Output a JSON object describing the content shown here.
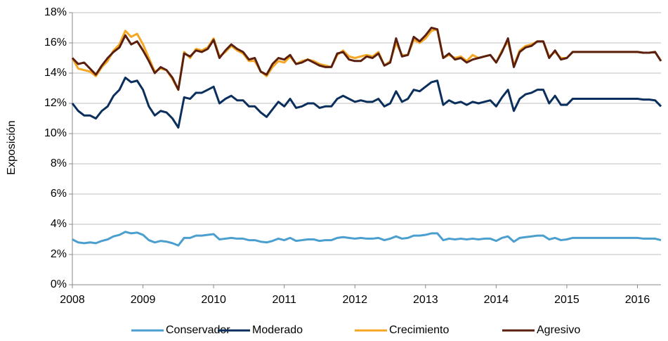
{
  "chart_data": {
    "type": "line",
    "y_label": "Exposición",
    "x": [
      2008,
      2008.083,
      2008.167,
      2008.25,
      2008.333,
      2008.417,
      2008.5,
      2008.583,
      2008.667,
      2008.75,
      2008.833,
      2008.917,
      2009,
      2009.083,
      2009.167,
      2009.25,
      2009.333,
      2009.417,
      2009.5,
      2009.583,
      2009.667,
      2009.75,
      2009.833,
      2009.917,
      2010,
      2010.083,
      2010.167,
      2010.25,
      2010.333,
      2010.417,
      2010.5,
      2010.583,
      2010.667,
      2010.75,
      2010.833,
      2010.917,
      2011,
      2011.083,
      2011.167,
      2011.25,
      2011.333,
      2011.417,
      2011.5,
      2011.583,
      2011.667,
      2011.75,
      2011.833,
      2011.917,
      2012,
      2012.083,
      2012.167,
      2012.25,
      2012.333,
      2012.417,
      2012.5,
      2012.583,
      2012.667,
      2012.75,
      2012.833,
      2012.917,
      2013,
      2013.083,
      2013.167,
      2013.25,
      2013.333,
      2013.417,
      2013.5,
      2013.583,
      2013.667,
      2013.75,
      2013.833,
      2013.917,
      2014,
      2014.083,
      2014.167,
      2014.25,
      2014.333,
      2014.417,
      2014.5,
      2014.583,
      2014.667,
      2014.75,
      2014.833,
      2014.917,
      2015,
      2015.083,
      2015.167,
      2015.25,
      2015.333,
      2015.417,
      2015.5,
      2015.583,
      2015.667,
      2015.75,
      2015.833,
      2015.917,
      2016,
      2016.083,
      2016.167,
      2016.25,
      2016.333
    ],
    "series": [
      {
        "name": "Conservador",
        "color": "#4a9fcf",
        "values": [
          3.0,
          2.8,
          2.75,
          2.8,
          2.75,
          2.9,
          3.0,
          3.2,
          3.3,
          3.5,
          3.4,
          3.45,
          3.3,
          2.95,
          2.8,
          2.9,
          2.85,
          2.75,
          2.6,
          3.1,
          3.1,
          3.25,
          3.25,
          3.3,
          3.35,
          3.0,
          3.05,
          3.1,
          3.05,
          3.05,
          2.95,
          2.95,
          2.85,
          2.8,
          2.9,
          3.05,
          2.95,
          3.1,
          2.9,
          2.95,
          3.0,
          3.0,
          2.9,
          2.95,
          2.95,
          3.1,
          3.15,
          3.1,
          3.05,
          3.1,
          3.05,
          3.05,
          3.1,
          2.95,
          3.05,
          3.2,
          3.05,
          3.1,
          3.25,
          3.25,
          3.3,
          3.4,
          3.4,
          2.95,
          3.05,
          3.0,
          3.05,
          3.0,
          3.05,
          3.0,
          3.05,
          3.05,
          2.9,
          3.1,
          3.2,
          2.85,
          3.1,
          3.15,
          3.2,
          3.25,
          3.25,
          3.0,
          3.1,
          2.95,
          3.0,
          3.1,
          3.1,
          3.1,
          3.1,
          3.1,
          3.1,
          3.1,
          3.1,
          3.1,
          3.1,
          3.1,
          3.1,
          3.05,
          3.05,
          3.05,
          2.95
        ]
      },
      {
        "name": "Moderado",
        "color": "#0a2f5c",
        "values": [
          12.0,
          11.5,
          11.2,
          11.2,
          11.0,
          11.5,
          11.8,
          12.5,
          12.9,
          13.7,
          13.4,
          13.5,
          12.9,
          11.8,
          11.2,
          11.5,
          11.4,
          11.0,
          10.4,
          12.4,
          12.3,
          12.7,
          12.7,
          12.9,
          13.1,
          12.0,
          12.3,
          12.5,
          12.2,
          12.2,
          11.8,
          11.8,
          11.4,
          11.1,
          11.6,
          12.1,
          11.8,
          12.3,
          11.7,
          11.8,
          12.0,
          12.0,
          11.7,
          11.8,
          11.8,
          12.3,
          12.5,
          12.3,
          12.1,
          12.2,
          12.1,
          12.1,
          12.3,
          11.8,
          12.0,
          12.8,
          12.1,
          12.3,
          12.9,
          12.8,
          13.1,
          13.4,
          13.5,
          11.9,
          12.2,
          12.0,
          12.1,
          11.9,
          12.1,
          12.0,
          12.1,
          12.2,
          11.8,
          12.4,
          12.9,
          11.5,
          12.3,
          12.6,
          12.7,
          12.9,
          12.9,
          12.0,
          12.5,
          11.9,
          11.9,
          12.3,
          12.3,
          12.3,
          12.3,
          12.3,
          12.3,
          12.3,
          12.3,
          12.3,
          12.3,
          12.3,
          12.3,
          12.25,
          12.25,
          12.2,
          11.8
        ]
      },
      {
        "name": "Crecimiento",
        "color": "#f5a623",
        "values": [
          15.0,
          14.3,
          14.2,
          14.1,
          13.8,
          14.4,
          14.8,
          15.5,
          15.9,
          16.8,
          16.4,
          16.6,
          15.9,
          15.0,
          14.1,
          14.3,
          14.2,
          13.6,
          12.9,
          15.4,
          15.0,
          15.6,
          15.5,
          15.7,
          16.3,
          15.1,
          15.4,
          15.8,
          15.5,
          15.3,
          14.8,
          14.8,
          14.1,
          13.8,
          14.4,
          14.8,
          14.7,
          15.1,
          14.6,
          14.8,
          14.9,
          14.8,
          14.6,
          14.5,
          14.4,
          15.2,
          15.5,
          15.1,
          15.0,
          15.1,
          15.2,
          15.1,
          15.4,
          14.5,
          14.8,
          16.0,
          15.2,
          15.2,
          16.2,
          16.0,
          16.3,
          16.8,
          16.9,
          15.0,
          15.2,
          15.0,
          15.1,
          14.8,
          15.2,
          15.0,
          15.1,
          15.2,
          14.7,
          15.5,
          16.1,
          14.5,
          15.5,
          15.8,
          15.9,
          16.1,
          16.1,
          15.1,
          15.4,
          15.0,
          15.0,
          15.4,
          15.4,
          15.4,
          15.4,
          15.4,
          15.4,
          15.4,
          15.4,
          15.4,
          15.4,
          15.4,
          15.4,
          15.35,
          15.35,
          15.4,
          14.8
        ]
      },
      {
        "name": "Agresivo",
        "color": "#5a1f0e",
        "values": [
          15.0,
          14.6,
          14.7,
          14.3,
          13.9,
          14.5,
          15.0,
          15.4,
          15.7,
          16.5,
          15.9,
          16.1,
          15.5,
          14.8,
          14.0,
          14.4,
          14.2,
          13.7,
          12.9,
          15.3,
          15.1,
          15.5,
          15.4,
          15.6,
          16.2,
          15.0,
          15.5,
          15.9,
          15.6,
          15.4,
          14.9,
          15.0,
          14.1,
          13.9,
          14.6,
          15.0,
          14.9,
          15.2,
          14.6,
          14.7,
          14.9,
          14.7,
          14.5,
          14.4,
          14.4,
          15.3,
          15.4,
          14.9,
          14.8,
          14.8,
          15.1,
          15.0,
          15.3,
          14.5,
          14.7,
          16.3,
          15.1,
          15.2,
          16.4,
          16.1,
          16.5,
          17.0,
          16.9,
          15.0,
          15.3,
          14.9,
          15.0,
          14.7,
          14.9,
          15.0,
          15.1,
          15.2,
          14.7,
          15.4,
          16.3,
          14.4,
          15.4,
          15.7,
          15.8,
          16.1,
          16.1,
          15.0,
          15.5,
          14.9,
          15.0,
          15.4,
          15.4,
          15.4,
          15.4,
          15.4,
          15.4,
          15.4,
          15.4,
          15.4,
          15.4,
          15.4,
          15.4,
          15.35,
          15.35,
          15.4,
          14.8
        ]
      }
    ],
    "xlim": [
      2008,
      2016.333
    ],
    "xticks": [
      2008,
      2009,
      2010,
      2011,
      2012,
      2013,
      2014,
      2015,
      2016
    ],
    "ylim": [
      0,
      18
    ],
    "yticks": [
      {
        "value": 0,
        "label": "0%"
      },
      {
        "value": 2,
        "label": "2%"
      },
      {
        "value": 4,
        "label": "4%"
      },
      {
        "value": 6,
        "label": "6%"
      },
      {
        "value": 8,
        "label": "8%"
      },
      {
        "value": 10,
        "label": "10%"
      },
      {
        "value": 12,
        "label": "12%"
      },
      {
        "value": 14,
        "label": "14%"
      },
      {
        "value": 16,
        "label": "16%"
      },
      {
        "value": 18,
        "label": "18%"
      }
    ],
    "grid": true,
    "legend": "bottom"
  }
}
